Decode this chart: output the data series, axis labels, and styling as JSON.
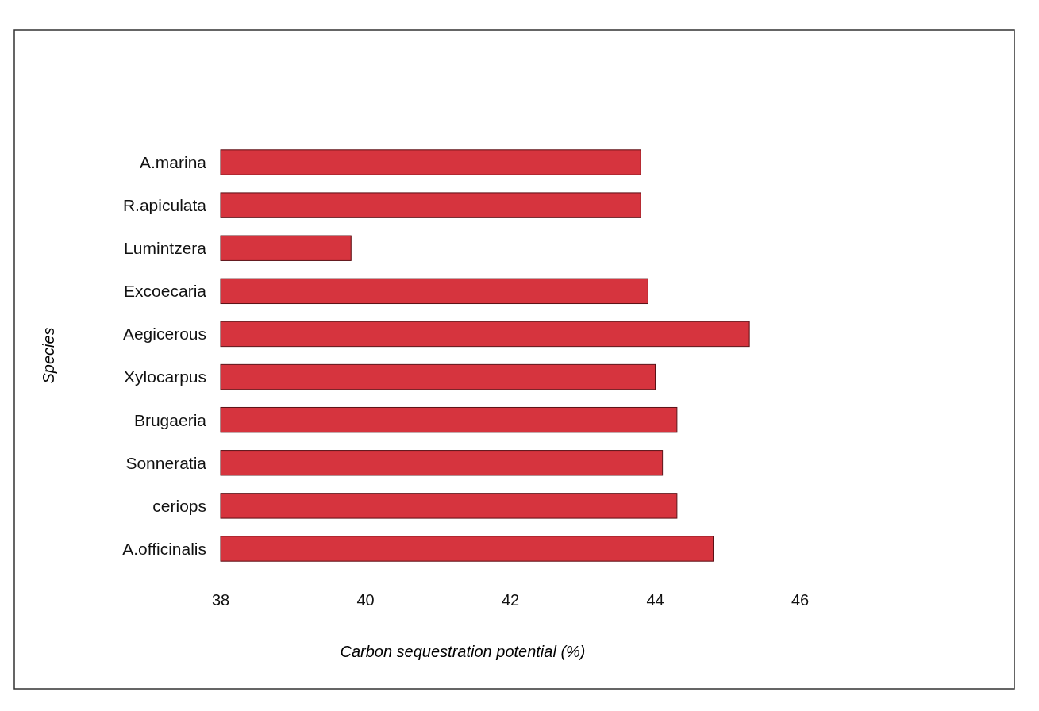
{
  "chart_data": {
    "type": "bar",
    "orientation": "horizontal",
    "xlabel": "Carbon sequestration potential (%)",
    "ylabel": "Species",
    "categories": [
      "A.marina",
      "R.apiculata",
      "Lumintzera",
      "Excoecaria",
      "Aegicerous",
      "Xylocarpus",
      "Brugaeria",
      "Sonneratia",
      "ceriops",
      "A.officinalis"
    ],
    "values": [
      43.8,
      43.8,
      39.8,
      43.9,
      45.3,
      44.0,
      44.3,
      44.1,
      44.3,
      44.8
    ],
    "color": "#d6343e",
    "xlim": [
      38,
      46
    ],
    "xticks": [
      38,
      40,
      42,
      44,
      46
    ],
    "grid": false
  }
}
